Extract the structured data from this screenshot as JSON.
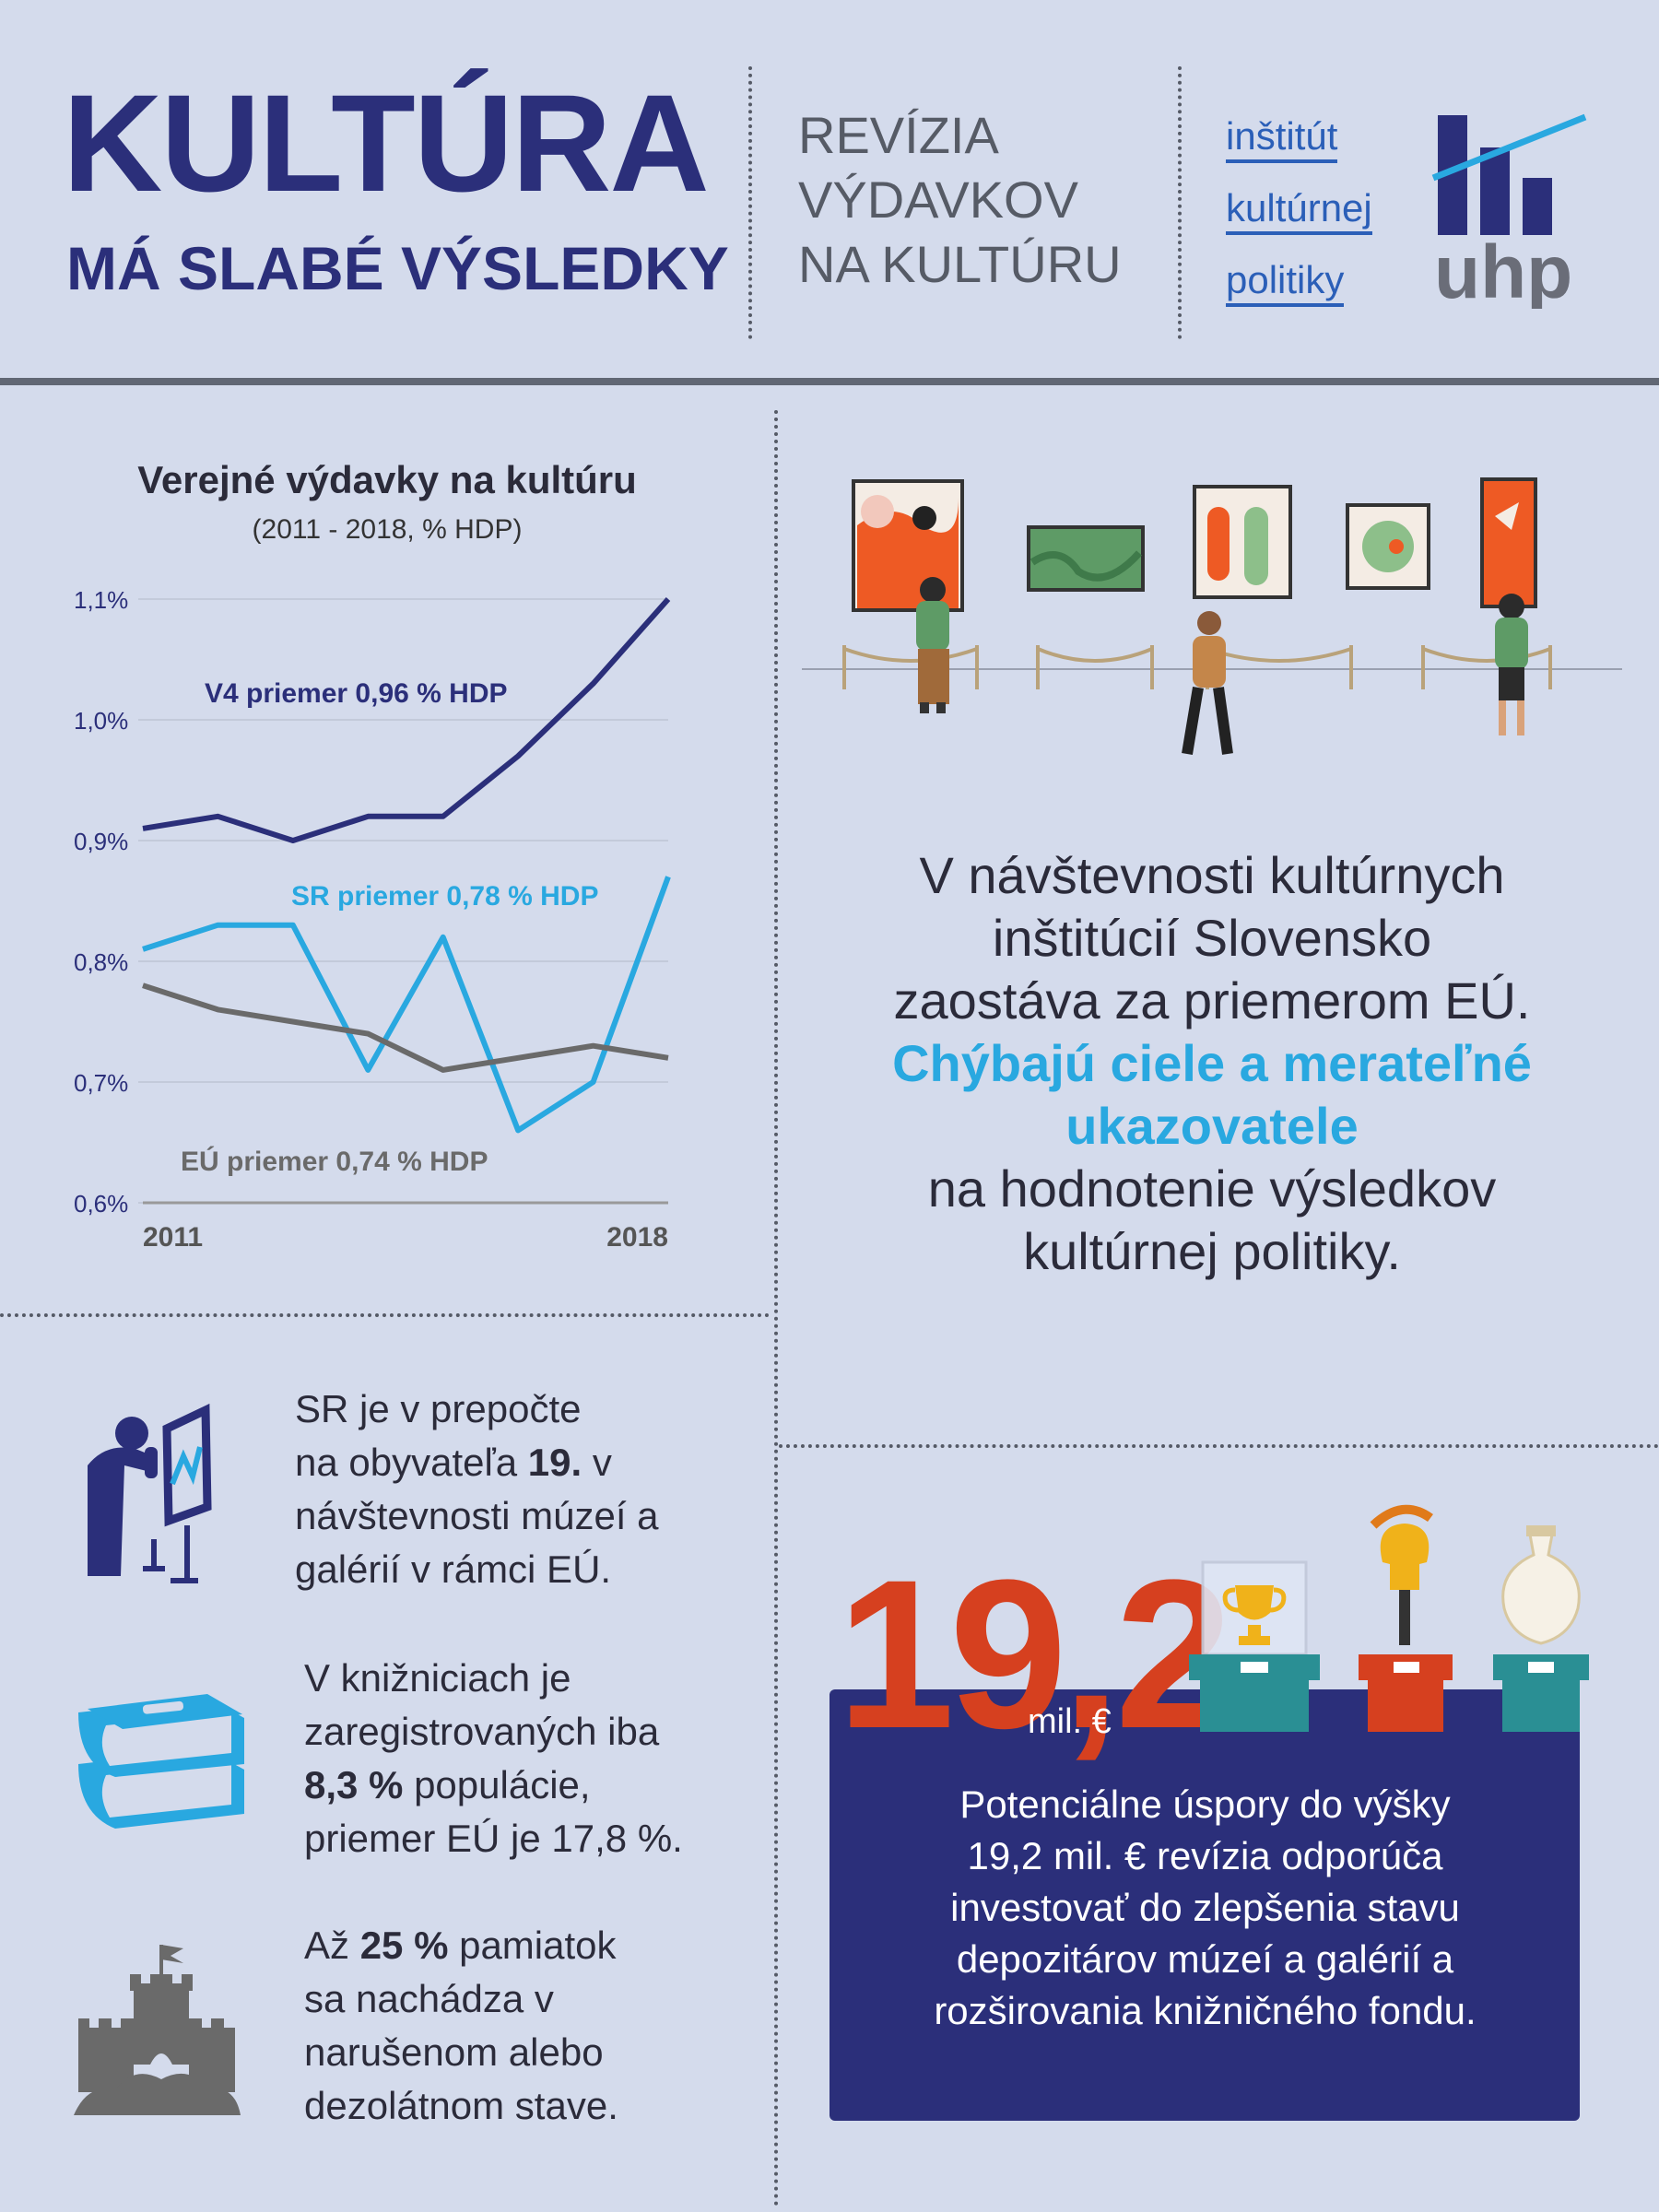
{
  "header": {
    "title_line1": "KULTÚRA",
    "title_line2": "MÁ SLABÉ VÝSLEDKY",
    "subtitle": [
      "REVÍZIA",
      "VÝDAVKOV",
      "NA KULTÚRU"
    ],
    "institute": [
      "inštitút",
      "kultúrnej",
      "politiky"
    ],
    "logo_text": "uhp"
  },
  "chart_data": {
    "type": "line",
    "title": "Verejné výdavky na kultúru",
    "subtitle": "(2011 - 2018, % HDP)",
    "x": [
      2011,
      2012,
      2013,
      2014,
      2015,
      2016,
      2017,
      2018
    ],
    "x_tick_labels": [
      "2011",
      "2018"
    ],
    "y_tick_labels": [
      "1,1%",
      "1,0%",
      "0,9%",
      "0,8%",
      "0,7%",
      "0,6%"
    ],
    "ylim": [
      0.6,
      1.1
    ],
    "grid": true,
    "series": [
      {
        "name": "V4 priemer 0,96 % HDP",
        "color": "#2b2f7a",
        "values": [
          0.91,
          0.92,
          0.9,
          0.92,
          0.92,
          0.97,
          1.03,
          1.1
        ]
      },
      {
        "name": "SR priemer 0,78 % HDP",
        "color": "#29a8e0",
        "values": [
          0.81,
          0.83,
          0.83,
          0.71,
          0.82,
          0.66,
          0.7,
          0.87
        ]
      },
      {
        "name": "EÚ priemer 0,74 % HDP",
        "color": "#6a6a6a",
        "values": [
          0.78,
          0.76,
          0.75,
          0.74,
          0.71,
          0.72,
          0.73,
          0.72
        ]
      }
    ]
  },
  "facts": {
    "museums": [
      "SR je v prepočte",
      "na obyvateľa ",
      "19.",
      " v",
      "návštevnosti múzeí a",
      "galérií v rámci EÚ."
    ],
    "libraries": [
      "V knižniciach je",
      "zaregistrovaných iba",
      "8,3 %",
      " populácie,",
      "priemer EÚ je 17,8 %."
    ],
    "monuments": [
      "Až ",
      "25 %",
      " pamiatok",
      "sa nachádza v",
      "narušenom alebo",
      "dezolátnom stave."
    ]
  },
  "main_text": {
    "line1": "V návštevnosti kultúrnych",
    "line2": "inštitúcií Slovensko",
    "line3": "zaostáva za priemerom EÚ.",
    "highlight1": "Chýbajú ciele a merateľné",
    "highlight2": "ukazovatele",
    "line4": "na hodnotenie výsledkov",
    "line5": "kultúrnej politiky."
  },
  "savings": {
    "number": "19,2",
    "unit": "mil. €",
    "text": [
      "Potenciálne úspory do výšky",
      "19,2 mil. € revízia odporúča",
      "investovať do zlepšenia stavu",
      "depozitárov múzeí a galérií a",
      "rozširovania knižničného fondu."
    ]
  },
  "colors": {
    "navy": "#2b2f7a",
    "blue": "#29a8e0",
    "orange": "#d6401f",
    "teal": "#2a8f94",
    "gray": "#6a6a6a",
    "background": "#d4dbec"
  }
}
